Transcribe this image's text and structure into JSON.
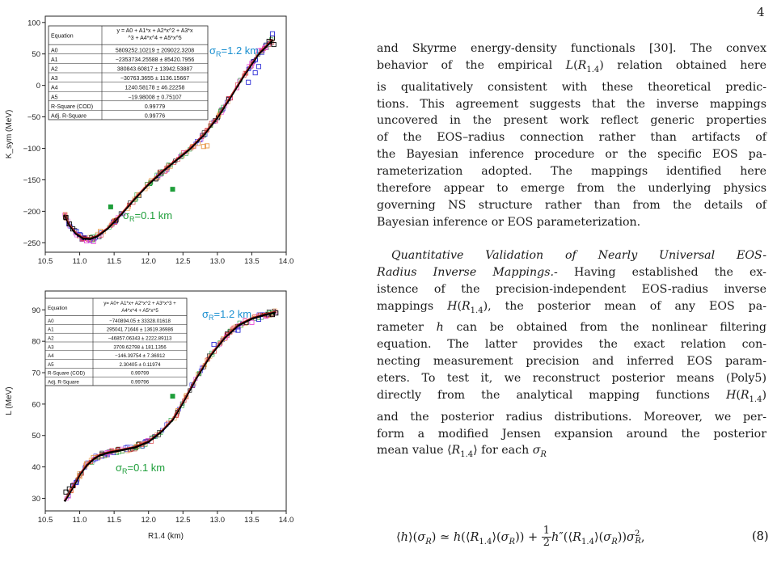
{
  "page": {
    "number": "4"
  },
  "chart_data": [
    {
      "type": "scatter",
      "ylabel": "K_sym (MeV)",
      "xlabel": "",
      "xlim": [
        10.5,
        14.0
      ],
      "ylim": [
        -265,
        110
      ],
      "x_ticks": [
        "10.5",
        "11.0",
        "11.5",
        "12.0",
        "12.5",
        "13.0",
        "13.5",
        "14.0"
      ],
      "y_ticks": [
        "100",
        "50",
        "0",
        "−50",
        "−100",
        "−150",
        "−200",
        "−250"
      ],
      "annotations": [
        {
          "text": "σR=1.2 km",
          "color": "#1a8fd0",
          "x": 12.55,
          "y": 90
        },
        {
          "text": "σR=0.1 km",
          "color": "#1e9e3a",
          "x": 11.2,
          "y": -220
        }
      ],
      "fit_table": {
        "rows": [
          [
            "Equation",
            "y = A0 + A1*x + A2*x^2 + A3*x^3 + A4*x^4 + A5*x^5"
          ],
          [
            "A0",
            "5809252.10219 ± 209022.3208"
          ],
          [
            "A1",
            "−2353734.25588 ± 85420.7956"
          ],
          [
            "A2",
            "380843.60817 ± 13942.53887"
          ],
          [
            "A3",
            "−30763.3655 ± 1136.15667"
          ],
          [
            "A4",
            "1240.58178 ± 46.22258"
          ],
          [
            "A5",
            "−19.98008 ± 0.75107"
          ],
          [
            "R-Square (COD)",
            "0.99779"
          ],
          [
            "Adj. R-Square",
            "0.99776"
          ]
        ]
      },
      "fit_curve": {
        "x": [
          10.78,
          10.85,
          10.95,
          11.05,
          11.15,
          11.25,
          11.4,
          11.6,
          11.8,
          12.0,
          12.2,
          12.4,
          12.6,
          12.8,
          13.0,
          13.2,
          13.4,
          13.6,
          13.8
        ],
        "y": [
          -205,
          -222,
          -236,
          -243,
          -244,
          -240,
          -228,
          -205,
          -180,
          -157,
          -137,
          -119,
          -101,
          -79,
          -51,
          -17,
          18,
          50,
          72
        ]
      },
      "outliers_green": [
        {
          "x": 11.45,
          "y": -193
        },
        {
          "x": 12.35,
          "y": -165
        }
      ],
      "series_markers": [
        {
          "color": "#000000",
          "x": [
            10.8,
            10.85,
            10.9,
            13.75,
            13.8,
            13.82
          ],
          "y": [
            -210,
            -220,
            -228,
            70,
            75,
            65
          ]
        },
        {
          "color": "#2b2bd6",
          "x": [
            10.95,
            11.0,
            13.45,
            13.55,
            13.6,
            13.8
          ],
          "y": [
            -232,
            -237,
            5,
            20,
            30,
            82
          ]
        },
        {
          "color": "#e64ed8",
          "x": [
            11.1,
            11.2,
            13.5,
            13.6,
            13.7
          ],
          "y": [
            -247,
            -248,
            35,
            55,
            60
          ]
        },
        {
          "color": "#e89a4a",
          "x": [
            12.65,
            12.72,
            12.8,
            12.85,
            11.3
          ],
          "y": [
            -97,
            -92,
            -97,
            -96,
            -232
          ]
        }
      ]
    },
    {
      "type": "scatter",
      "ylabel": "L (MeV)",
      "xlabel": "R1.4 (km)",
      "xlim": [
        10.5,
        14.0
      ],
      "ylim": [
        26,
        96
      ],
      "x_ticks": [
        "10.5",
        "11.0",
        "11.5",
        "12.0",
        "12.5",
        "13.0",
        "13.5",
        "14.0"
      ],
      "y_ticks": [
        "90",
        "80",
        "70",
        "60",
        "50",
        "40",
        "30"
      ],
      "annotations": [
        {
          "text": "σR=1.2 km",
          "color": "#1a8fd0",
          "x": 12.45,
          "y": 90
        },
        {
          "text": "σR=0.1 km",
          "color": "#1e9e3a",
          "x": 11.25,
          "y": 40
        }
      ],
      "fit_table": {
        "rows": [
          [
            "Equation",
            "y = A0 + A1*x + A2*x^2 + A3*x^3 + A4*x^4 + A5*x^5"
          ],
          [
            "A0",
            "−740894.05 ± 33328.01618"
          ],
          [
            "A1",
            "295041.71646 ± 13619.36986"
          ],
          [
            "A2",
            "−46857.06343 ± 2222.89113"
          ],
          [
            "A3",
            "3709.62798 ± 181.1356"
          ],
          [
            "A4",
            "−146.39754 ± 7.36912"
          ],
          [
            "A5",
            "2.30405 ± 0.11974"
          ],
          [
            "R-Square (COD)",
            "0.99799"
          ],
          [
            "Adj. R-Square",
            "0.99796"
          ]
        ]
      },
      "fit_curve": {
        "x": [
          10.78,
          10.9,
          11.0,
          11.1,
          11.2,
          11.3,
          11.45,
          11.6,
          11.8,
          12.0,
          12.2,
          12.35,
          12.5,
          12.7,
          12.9,
          13.1,
          13.3,
          13.5,
          13.7,
          13.85
        ],
        "y": [
          29,
          33.5,
          37.5,
          40.5,
          42.5,
          43.8,
          44.7,
          45.3,
          46.2,
          48,
          51.5,
          55,
          60.5,
          68.5,
          75.5,
          81,
          85,
          87.2,
          88.5,
          89.2
        ]
      },
      "outliers_green": [
        {
          "x": 12.35,
          "y": 62.5
        }
      ],
      "series_markers": [
        {
          "color": "#000000",
          "x": [
            10.8,
            10.85,
            10.9,
            13.8,
            13.85
          ],
          "y": [
            32,
            33,
            34,
            88.5,
            89
          ]
        },
        {
          "color": "#2b2bd6",
          "x": [
            10.95,
            12.95,
            13.3,
            13.6
          ],
          "y": [
            35,
            79,
            83.5,
            87
          ]
        },
        {
          "color": "#e64ed8",
          "x": [
            11.4,
            13.5,
            13.7
          ],
          "y": [
            44.5,
            86,
            88
          ]
        },
        {
          "color": "#e89a4a",
          "x": [
            11.0,
            11.1,
            11.2
          ],
          "y": [
            37,
            41,
            43
          ]
        }
      ]
    }
  ],
  "text": {
    "para1": [
      "and Skyrme energy-density functionals [30]. The convex",
      "behavior of the empirical L(R1.4) relation obtained here",
      "is qualitatively consistent with these theoretical predic-",
      "tions. This agreement suggests that the inverse mappings",
      "uncovered in the present work reflect generic properties",
      "of the EOS–radius connection rather than artifacts of",
      "the Bayesian inference procedure or the specific EOS pa-",
      "rameterization adopted.  The mappings identified here",
      "therefore appear to emerge from the underlying physics",
      "governing NS structure rather than from the details of",
      "Bayesian inference or EOS parameterization."
    ],
    "para2_heading": "Quantitative Validation of Nearly Universal EOS-Radius Inverse Mappings.",
    "para2": [
      "- Having established the ex-",
      "istence of the precision-independent EOS-radius inverse",
      "mappings H(R1.4), the posterior mean of any EOS pa-",
      "rameter h can be obtained from the nonlinear filtering",
      "equation.  The latter provides the exact relation con-",
      "necting measurement precision and inferred EOS param-",
      "eters. To test it, we reconstruct posterior means (Poly5)",
      "directly from the analytical mapping functions H(R1.4)",
      "and the posterior radius distributions. Moreover, we per-",
      "form a modified Jensen expansion around the posterior",
      "mean value ⟨R1.4⟩ for each σR"
    ],
    "equation": "⟨h⟩(σR) ≃ h(⟨R1.4⟩(σR)) + ½h″(⟨R1.4⟩(σR))σR²,",
    "equation_number": "(8)"
  }
}
